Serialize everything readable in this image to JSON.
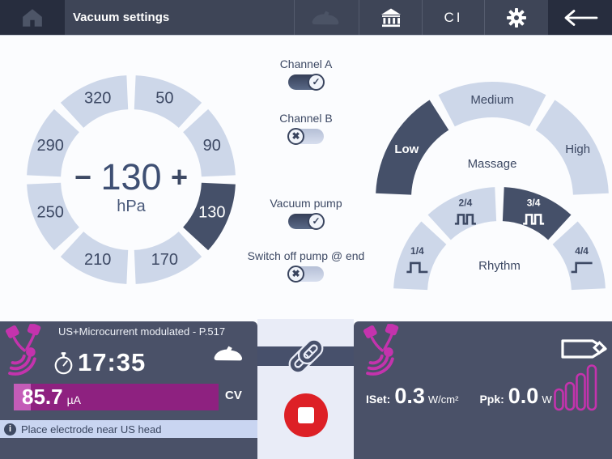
{
  "topbar": {
    "title": "Vacuum settings",
    "ci": "CI"
  },
  "vacuum_dial": {
    "values": [
      "50",
      "90",
      "130",
      "170",
      "210",
      "250",
      "290",
      "320"
    ],
    "selected_index": 2,
    "center_value": "130",
    "unit": "hPa",
    "minus": "−",
    "plus": "+"
  },
  "toggles": [
    {
      "label": "Channel A",
      "state": true
    },
    {
      "label": "Channel B",
      "state": false
    },
    {
      "label": "Vacuum pump",
      "state": true
    },
    {
      "label": "Switch off pump @ end",
      "state": false
    }
  ],
  "massage": {
    "label": "Massage",
    "options": [
      "Low",
      "Medium",
      "High"
    ],
    "selected_index": 0
  },
  "rhythm": {
    "label": "Rhythm",
    "options": [
      {
        "label": "1/4",
        "wave": "single"
      },
      {
        "label": "2/4",
        "wave": "double"
      },
      {
        "label": "3/4",
        "wave": "double"
      },
      {
        "label": "4/4",
        "wave": "cont"
      }
    ],
    "selected_index": 2
  },
  "bottom_left": {
    "program": "US+Microcurrent modulated - P.517",
    "time": "17:35",
    "current_value": "85.7",
    "current_unit": "µA",
    "mode": "CV",
    "hint": "Place electrode near US head"
  },
  "bottom_right": {
    "iset_label": "ISet:",
    "iset_value": "0.3",
    "iset_unit": "W/cm²",
    "ppk_label": "Ppk:",
    "ppk_value": "0.0",
    "ppk_unit": "W"
  },
  "icons": {
    "info": "i",
    "check": "✓",
    "cross": "✖"
  },
  "colors": {
    "accent_magenta": "#c433ad",
    "bar_dark": "#8e2180",
    "bar_light": "#c45cb8",
    "segment_light": "#cdd7e9",
    "segment_selected": "#455069",
    "panel_dark": "#4a5168",
    "topbar_dark": "#272d3e",
    "topbar_mid": "#3e4557",
    "info_bar": "#c9d5f1",
    "stop_red": "#dd2026",
    "strip_light": "#e9ecf7",
    "text_navy": "#3d4964"
  }
}
